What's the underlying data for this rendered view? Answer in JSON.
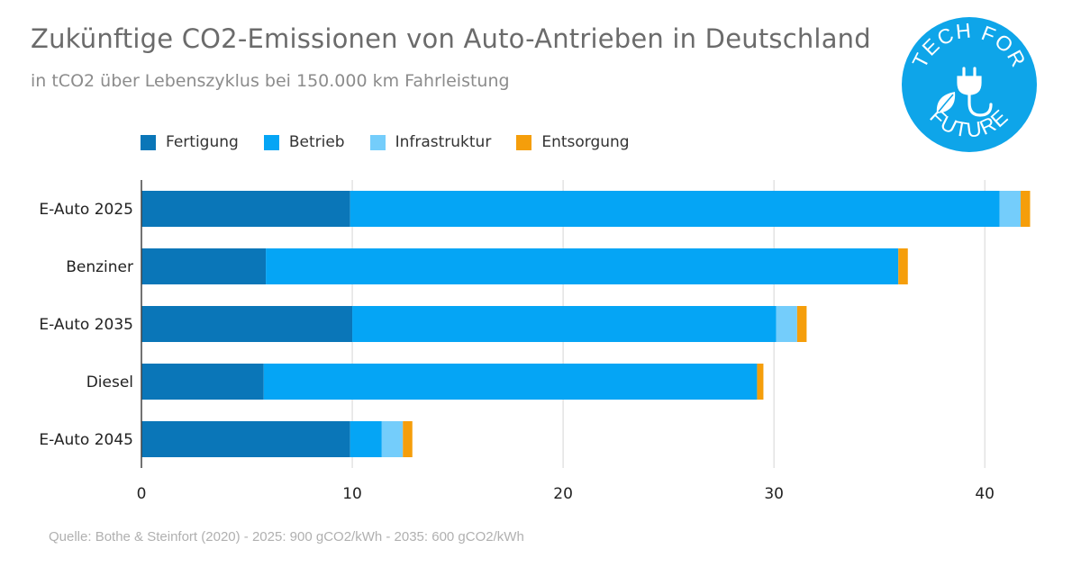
{
  "header": {
    "title": "Zukünftige CO2-Emissionen von Auto-Antrieben in Deutschland",
    "subtitle": "in tCO2 über Lebenszyklus bei 150.000 km Fahrleistung"
  },
  "source": "Quelle: Bothe & Steinfort (2020) - 2025: 900 gCO2/kWh - 2035: 600 gCO2/kWh",
  "logo": {
    "text_top": "TECH FOR",
    "text_bottom": "FUTURE",
    "color": "#0ea5e9"
  },
  "chart_data": {
    "type": "bar",
    "orientation": "horizontal",
    "stacked": true,
    "title": "Zukünftige CO2-Emissionen von Auto-Antrieben in Deutschland",
    "subtitle": "in tCO2 über Lebenszyklus bei 150.000 km Fahrleistung",
    "categories": [
      "E-Auto 2025",
      "Benziner",
      "E-Auto 2035",
      "Diesel",
      "E-Auto 2045"
    ],
    "series": [
      {
        "name": "Fertigung",
        "color": "#0a76b8",
        "values": [
          9.9,
          5.9,
          10.0,
          5.8,
          9.9
        ]
      },
      {
        "name": "Betrieb",
        "color": "#05a5f5",
        "values": [
          30.8,
          30.0,
          20.1,
          23.4,
          1.5
        ]
      },
      {
        "name": "Infrastruktur",
        "color": "#74cdfb",
        "values": [
          1.0,
          0.0,
          1.0,
          0.0,
          1.0
        ]
      },
      {
        "name": "Entsorgung",
        "color": "#f59e0b",
        "values": [
          0.45,
          0.45,
          0.45,
          0.3,
          0.45
        ]
      }
    ],
    "xlim": [
      0,
      42
    ],
    "xticks": [
      0,
      10,
      20,
      30,
      40
    ],
    "xlabel": "",
    "ylabel": "",
    "grid": "vertical",
    "legend_position": "top"
  }
}
